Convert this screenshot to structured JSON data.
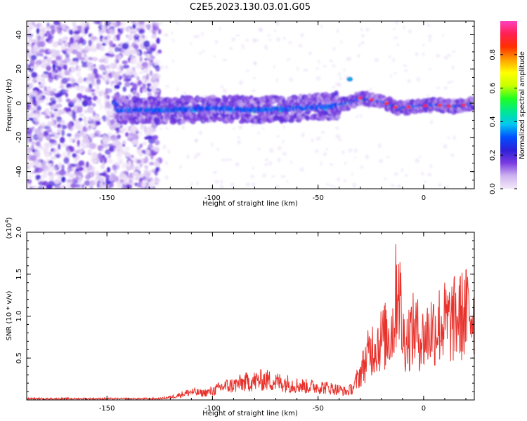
{
  "title": "C2E5.2023.130.03.01.G05",
  "chart_data": [
    {
      "type": "heatmap",
      "xlabel": "Height of straight line (km)",
      "ylabel": "Frequency (Hz)",
      "xlim": [
        -188,
        24
      ],
      "ylim": [
        -50,
        48
      ],
      "x_ticks": [
        -150,
        -100,
        -50,
        0
      ],
      "y_ticks": [
        -40,
        -20,
        0,
        20,
        40
      ],
      "colorbar": {
        "label": "Normalized spectral amplitude",
        "range": [
          0.0,
          1.0
        ],
        "ticks": [
          "0.0",
          "0.2",
          "0.4",
          "0.6",
          "0.8"
        ],
        "colors": [
          "#f3e8f8",
          "#cdb4f0",
          "#7a3be0",
          "#2d20d8",
          "#0050ff",
          "#00c8f0",
          "#00e890",
          "#20ff20",
          "#c8ff00",
          "#ffff00",
          "#ffa000",
          "#ff3000",
          "#ff2050",
          "#ff40c0"
        ]
      },
      "ridge": {
        "description_values": [
          {
            "x": -145,
            "y": -4
          },
          {
            "x": -120,
            "y": -4
          },
          {
            "x": -100,
            "y": -3
          },
          {
            "x": -80,
            "y": -4
          },
          {
            "x": -60,
            "y": -3
          },
          {
            "x": -45,
            "y": -2
          },
          {
            "x": -35,
            "y": 0
          },
          {
            "x": -30,
            "y": 3
          },
          {
            "x": -20,
            "y": 1
          },
          {
            "x": -12,
            "y": -3
          },
          {
            "x": -5,
            "y": -2
          },
          {
            "x": 5,
            "y": -1
          },
          {
            "x": 15,
            "y": -2
          },
          {
            "x": 24,
            "y": 0
          }
        ],
        "peak_amplitude": 0.95
      },
      "noise_region_x": [
        -188,
        -125
      ]
    },
    {
      "type": "line",
      "xlabel": "Height of straight line (km)",
      "ylabel": "SNR (10 * v/v)",
      "y_multiplier": "(x10",
      "y_multiplier_exp": "4",
      "y_multiplier_close": ")",
      "xlim": [
        -188,
        24
      ],
      "ylim": [
        0,
        2.0
      ],
      "x_ticks": [
        -150,
        -100,
        -50,
        0
      ],
      "y_ticks": [
        "0.5",
        "1.0",
        "1.5",
        "2.0"
      ],
      "color": "#e8322c",
      "series": [
        {
          "x": [
            -188,
            -150,
            -125,
            -120,
            -115,
            -110,
            -105,
            -100,
            -95,
            -90,
            -85,
            -80,
            -75,
            -70,
            -65,
            -60,
            -55,
            -50,
            -45,
            -40,
            -36,
            -33,
            -30,
            -28,
            -26,
            -24,
            -22,
            -20,
            -18,
            -16,
            -14,
            -13,
            -12,
            -11,
            -10,
            -8,
            -6,
            -4,
            -2,
            0,
            3,
            6,
            9,
            12,
            15,
            18,
            21,
            24
          ],
          "y": [
            0.01,
            0.01,
            0.02,
            0.04,
            0.08,
            0.12,
            0.1,
            0.13,
            0.2,
            0.22,
            0.26,
            0.28,
            0.3,
            0.27,
            0.25,
            0.22,
            0.2,
            0.2,
            0.18,
            0.15,
            0.12,
            0.2,
            0.4,
            0.55,
            0.7,
            0.8,
            0.85,
            0.9,
            0.95,
            1.0,
            1.15,
            1.6,
            1.95,
            1.4,
            0.95,
            0.9,
            1.0,
            1.05,
            0.95,
            0.9,
            1.05,
            1.1,
            1.15,
            1.15,
            1.2,
            1.25,
            1.3,
            1.35
          ]
        }
      ]
    }
  ]
}
